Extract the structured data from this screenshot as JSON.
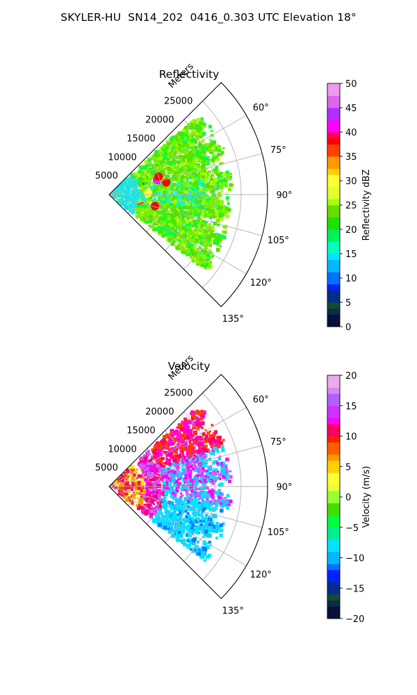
{
  "suptitle": "SKYLER-HU  SN14_202  0416_0.303 UTC Elevation 18°",
  "chart_data": [
    {
      "type": "polar_sector",
      "title": "Reflectivity",
      "radial_label": "Meters",
      "r_ticks": [
        "5000",
        "10000",
        "15000",
        "20000",
        "25000"
      ],
      "r_values": [
        5000,
        10000,
        15000,
        20000,
        25000
      ],
      "r_max": 30000,
      "theta_ticks": [
        "60°",
        "75°",
        "90°",
        "105°",
        "120°",
        "135°"
      ],
      "theta_values": [
        60,
        75,
        90,
        105,
        120,
        135
      ],
      "theta_range": [
        45,
        135
      ],
      "grid": true,
      "colorbar": {
        "label": "Reflectivity dBZ",
        "ticks": [
          "0",
          "5",
          "10",
          "15",
          "20",
          "25",
          "30",
          "35",
          "40",
          "45",
          "50"
        ],
        "range": [
          0,
          50
        ]
      },
      "data_extent_m": [
        0,
        23000
      ],
      "colors": [
        "#00ff40",
        "#55e000",
        "#7df000",
        "#a6ff00",
        "#18f0c8",
        "#00e6ff",
        "#ff0000",
        "#ff00ff",
        "#ffff33"
      ]
    },
    {
      "type": "polar_sector",
      "title": "Velocity",
      "radial_label": "Meters",
      "r_ticks": [
        "5000",
        "10000",
        "15000",
        "20000",
        "25000"
      ],
      "r_values": [
        5000,
        10000,
        15000,
        20000,
        25000
      ],
      "r_max": 30000,
      "theta_ticks": [
        "60°",
        "75°",
        "90°",
        "105°",
        "120°",
        "135°"
      ],
      "theta_values": [
        60,
        75,
        90,
        105,
        120,
        135
      ],
      "theta_range": [
        45,
        135
      ],
      "grid": true,
      "colorbar": {
        "label": "Velocity (m/s)",
        "ticks": [
          "−20",
          "−15",
          "−10",
          "−5",
          "0",
          "5",
          "10",
          "15",
          "20"
        ],
        "range": [
          -20,
          20
        ]
      },
      "data_extent_m": [
        0,
        23000
      ],
      "colors": [
        "#ff0060",
        "#ff4000",
        "#ff9900",
        "#ffe600",
        "#c060ff",
        "#ff00ff",
        "#00e6ff",
        "#1ec8ff",
        "#0080ff"
      ]
    }
  ]
}
